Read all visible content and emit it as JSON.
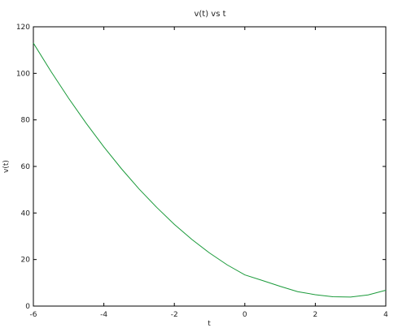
{
  "chart_data": {
    "type": "line",
    "title": "v(t) vs t",
    "xlabel": "t",
    "ylabel": "v(t)",
    "xlim": [
      -6,
      4
    ],
    "ylim": [
      0,
      120
    ],
    "xticks": [
      -6,
      -4,
      -2,
      0,
      2,
      4
    ],
    "yticks": [
      0,
      20,
      40,
      60,
      80,
      100,
      120
    ],
    "grid": false,
    "series": [
      {
        "color": "#1a9a3a",
        "x": [
          -6,
          -5.5,
          -5,
          -4.5,
          -4,
          -3.5,
          -3,
          -2.5,
          -2,
          -1.5,
          -1,
          -0.5,
          0,
          0.5,
          1,
          1.5,
          2,
          2.5,
          3,
          3.5,
          4
        ],
        "y": [
          113,
          100.8,
          89.3,
          78.5,
          68.4,
          59,
          50.3,
          42.4,
          35.1,
          28.6,
          22.8,
          17.7,
          13.4,
          11,
          8.5,
          6.2,
          4.9,
          4,
          3.9,
          4.8,
          6.8
        ]
      }
    ]
  }
}
